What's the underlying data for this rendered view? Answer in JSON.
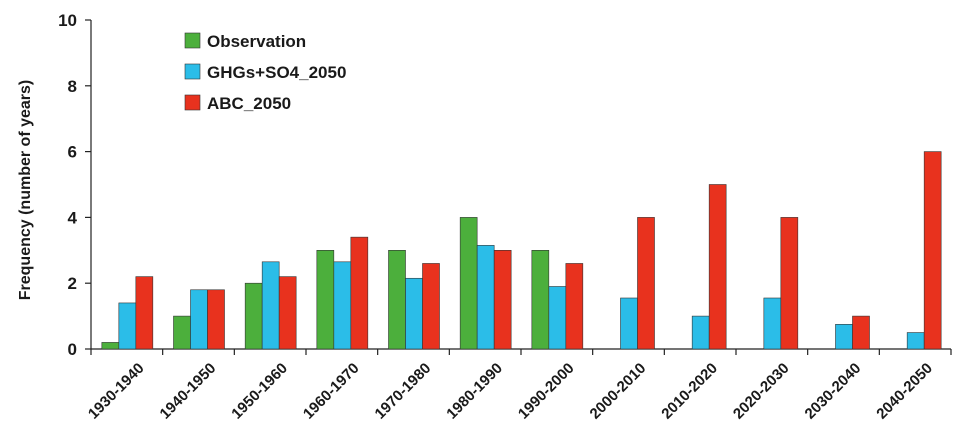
{
  "chart_data": {
    "type": "bar",
    "title": "",
    "xlabel": "",
    "ylabel": "Frequency (number of years)",
    "ylim": [
      0,
      10
    ],
    "yticks": [
      0,
      2,
      4,
      6,
      8,
      10
    ],
    "grid": false,
    "legend_position": "top-left",
    "categories": [
      "1930-1940",
      "1940-1950",
      "1950-1960",
      "1960-1970",
      "1970-1980",
      "1980-1990",
      "1990-2000",
      "2000-2010",
      "2010-2020",
      "2020-2030",
      "2030-2040",
      "2040-2050"
    ],
    "series": [
      {
        "name": "Observation",
        "color": "#4caf3c",
        "values": [
          0.2,
          1.0,
          2.0,
          3.0,
          3.0,
          4.0,
          3.0,
          null,
          null,
          null,
          null,
          null
        ]
      },
      {
        "name": "GHGs+SO4_2050",
        "color": "#2bbde8",
        "values": [
          1.4,
          1.8,
          2.65,
          2.65,
          2.15,
          3.15,
          1.9,
          1.55,
          1.0,
          1.55,
          0.75,
          0.5
        ]
      },
      {
        "name": "ABC_2050",
        "color": "#e8321e",
        "values": [
          2.2,
          1.8,
          2.2,
          3.4,
          2.6,
          3.0,
          2.6,
          4.0,
          5.0,
          4.0,
          1.0,
          6.0
        ]
      }
    ]
  }
}
